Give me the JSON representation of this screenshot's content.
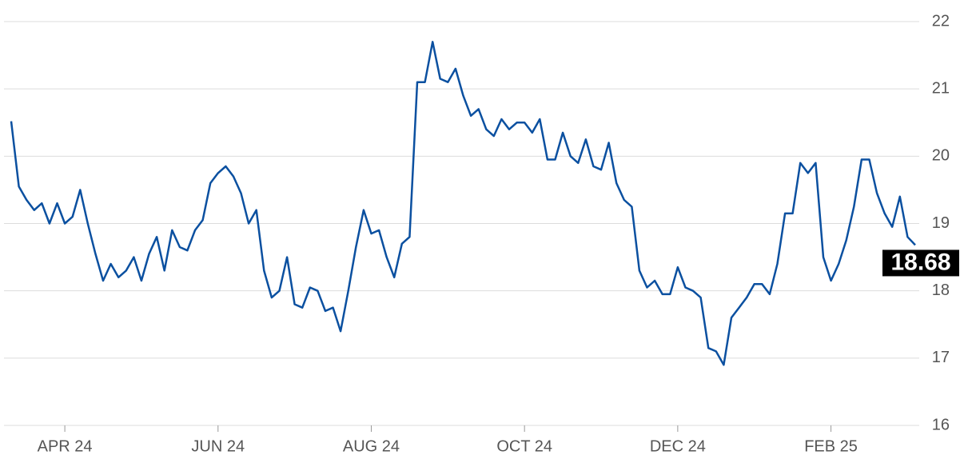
{
  "chart_data": {
    "type": "line",
    "color": "#0b50a0",
    "ylim": [
      16,
      22
    ],
    "yticks": [
      16,
      17,
      18,
      19,
      20,
      21,
      22
    ],
    "grid": true,
    "categories": [
      null,
      null,
      null,
      null,
      null,
      null,
      null,
      "APR 24",
      null,
      null,
      null,
      null,
      null,
      null,
      null,
      null,
      null,
      null,
      null,
      null,
      null,
      null,
      null,
      null,
      null,
      null,
      null,
      "JUN 24",
      null,
      null,
      null,
      null,
      null,
      null,
      null,
      null,
      null,
      null,
      null,
      null,
      null,
      null,
      null,
      null,
      null,
      null,
      null,
      "AUG 24",
      null,
      null,
      null,
      null,
      null,
      null,
      null,
      null,
      null,
      null,
      null,
      null,
      null,
      null,
      null,
      null,
      null,
      null,
      null,
      "OCT 24",
      null,
      null,
      null,
      null,
      null,
      null,
      null,
      null,
      null,
      null,
      null,
      null,
      null,
      null,
      null,
      null,
      null,
      null,
      null,
      "DEC 24",
      null,
      null,
      null,
      null,
      null,
      null,
      null,
      null,
      null,
      null,
      null,
      null,
      null,
      null,
      null,
      null,
      null,
      null,
      null,
      "FEB 25",
      null,
      null,
      null,
      null,
      null,
      null,
      null,
      null,
      null,
      null,
      null
    ],
    "values": [
      20.52,
      19.55,
      19.35,
      19.2,
      19.3,
      19.0,
      19.3,
      19.0,
      19.1,
      19.5,
      19.0,
      18.55,
      18.15,
      18.4,
      18.2,
      18.3,
      18.5,
      18.15,
      18.55,
      18.8,
      18.3,
      18.9,
      18.65,
      18.6,
      18.9,
      19.05,
      19.6,
      19.75,
      19.85,
      19.7,
      19.45,
      19.0,
      19.2,
      18.3,
      17.9,
      18.0,
      18.5,
      17.8,
      17.75,
      18.05,
      18.0,
      17.7,
      17.75,
      17.4,
      18.0,
      18.65,
      19.2,
      18.85,
      18.9,
      18.5,
      18.2,
      18.7,
      18.8,
      21.1,
      21.1,
      21.7,
      21.15,
      21.1,
      21.3,
      20.9,
      20.6,
      20.7,
      20.4,
      20.3,
      20.55,
      20.4,
      20.5,
      20.5,
      20.35,
      20.55,
      19.95,
      19.95,
      20.35,
      20.0,
      19.9,
      20.25,
      19.85,
      19.8,
      20.2,
      19.6,
      19.35,
      19.25,
      18.3,
      18.05,
      18.15,
      17.95,
      17.95,
      18.35,
      18.05,
      18.0,
      17.9,
      17.15,
      17.1,
      16.9,
      17.6,
      17.75,
      17.9,
      18.1,
      18.1,
      17.95,
      18.4,
      19.15,
      19.15,
      19.9,
      19.75,
      19.9,
      18.5,
      18.15,
      18.4,
      18.75,
      19.25,
      19.95,
      19.95,
      19.45,
      19.15,
      18.95,
      19.4,
      18.8,
      18.68
    ]
  }
}
